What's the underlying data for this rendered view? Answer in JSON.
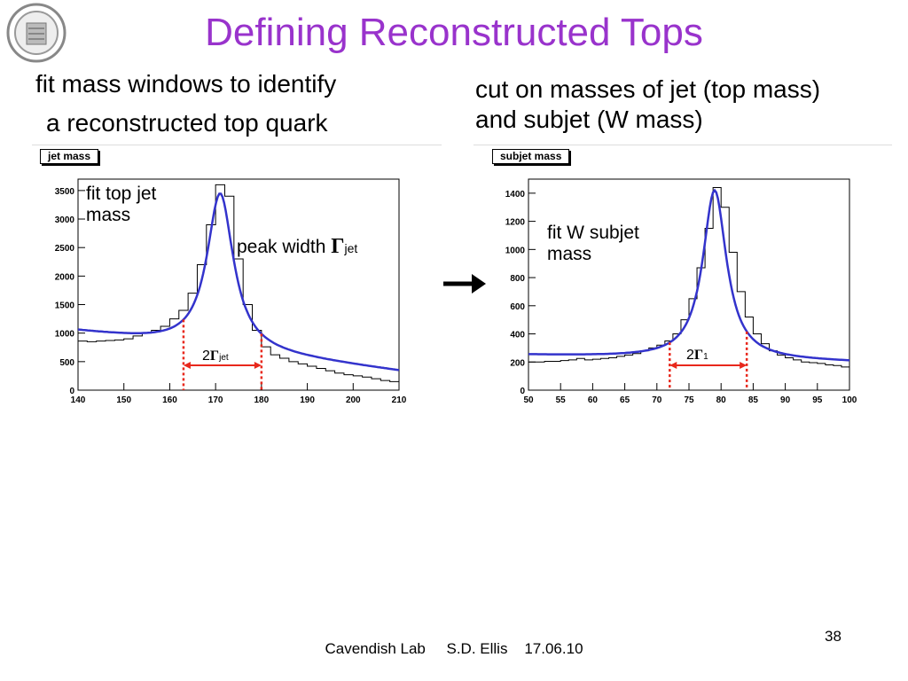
{
  "title": "Defining Reconstructed Tops",
  "left_text": {
    "line1": "fit mass windows to identify",
    "line2": "a reconstructed top quark"
  },
  "right_text": {
    "line1": "cut on masses of jet (top mass)",
    "line2": "and subjet (W mass)"
  },
  "left_annotations": {
    "fit": [
      "fit top jet",
      "mass"
    ],
    "peak_label": "peak width ",
    "gamma": "Γ",
    "jet_sub": "jet",
    "window_label": "2",
    "window_sub": "jet"
  },
  "right_annotations": {
    "fit": [
      "fit W subjet",
      "mass"
    ],
    "window_label": "2",
    "gamma": "Γ",
    "window_sub": "1"
  },
  "footer": "Cavendish Lab     S.D. Ellis    17.06.10",
  "page_number": "38",
  "colors": {
    "title": "#9933cc",
    "fit": "#3333cc",
    "window": "#e8281c"
  },
  "chart_data": [
    {
      "type": "line",
      "title": "jet mass",
      "xlim": [
        140,
        210
      ],
      "ylim": [
        0,
        3700
      ],
      "xticks": [
        140,
        150,
        160,
        170,
        180,
        190,
        200,
        210
      ],
      "yticks": [
        0,
        500,
        1000,
        1500,
        2000,
        2500,
        3000,
        3500
      ],
      "window": [
        163,
        180
      ],
      "series": [
        {
          "kind": "histogram",
          "x": [
            140,
            142,
            144,
            146,
            148,
            150,
            152,
            154,
            156,
            158,
            160,
            162,
            164,
            166,
            168,
            170,
            172,
            174,
            176,
            178,
            180,
            182,
            184,
            186,
            188,
            190,
            192,
            194,
            196,
            198,
            200,
            202,
            204,
            206,
            208
          ],
          "values": [
            860,
            850,
            860,
            870,
            880,
            900,
            950,
            1000,
            1050,
            1120,
            1250,
            1400,
            1700,
            2200,
            2900,
            3600,
            3400,
            2300,
            1500,
            1050,
            760,
            620,
            560,
            500,
            460,
            420,
            380,
            340,
            300,
            270,
            250,
            230,
            200,
            170,
            150
          ]
        },
        {
          "kind": "fit",
          "peak_x": 171,
          "peak_y": 3450,
          "gamma": 7,
          "base": 720,
          "slope": -10
        }
      ]
    },
    {
      "type": "line",
      "title": "subjet mass",
      "xlim": [
        50,
        100
      ],
      "ylim": [
        0,
        1500
      ],
      "xticks": [
        50,
        55,
        60,
        65,
        70,
        75,
        80,
        85,
        90,
        95,
        100
      ],
      "yticks": [
        0,
        200,
        400,
        600,
        800,
        1000,
        1200,
        1400
      ],
      "window": [
        72,
        84
      ],
      "series": [
        {
          "kind": "histogram",
          "x": [
            50,
            51.25,
            52.5,
            53.75,
            55,
            56.25,
            57.5,
            58.75,
            60,
            61.25,
            62.5,
            63.75,
            65,
            66.25,
            67.5,
            68.75,
            70,
            71.25,
            72.5,
            73.75,
            75,
            76.25,
            77.5,
            78.75,
            80,
            81.25,
            82.5,
            83.75,
            85,
            86.25,
            87.5,
            88.75,
            90,
            91.25,
            92.5,
            93.75,
            95,
            96.25,
            97.5,
            98.75
          ],
          "values": [
            200,
            200,
            205,
            205,
            210,
            215,
            225,
            215,
            220,
            225,
            230,
            240,
            250,
            260,
            280,
            300,
            320,
            350,
            400,
            500,
            650,
            870,
            1150,
            1440,
            1300,
            980,
            700,
            520,
            400,
            330,
            280,
            250,
            230,
            215,
            200,
            195,
            190,
            180,
            175,
            165
          ]
        },
        {
          "kind": "fit",
          "peak_x": 79,
          "peak_y": 1420,
          "gamma": 4.5,
          "base": 220,
          "slope": -1
        }
      ]
    }
  ]
}
